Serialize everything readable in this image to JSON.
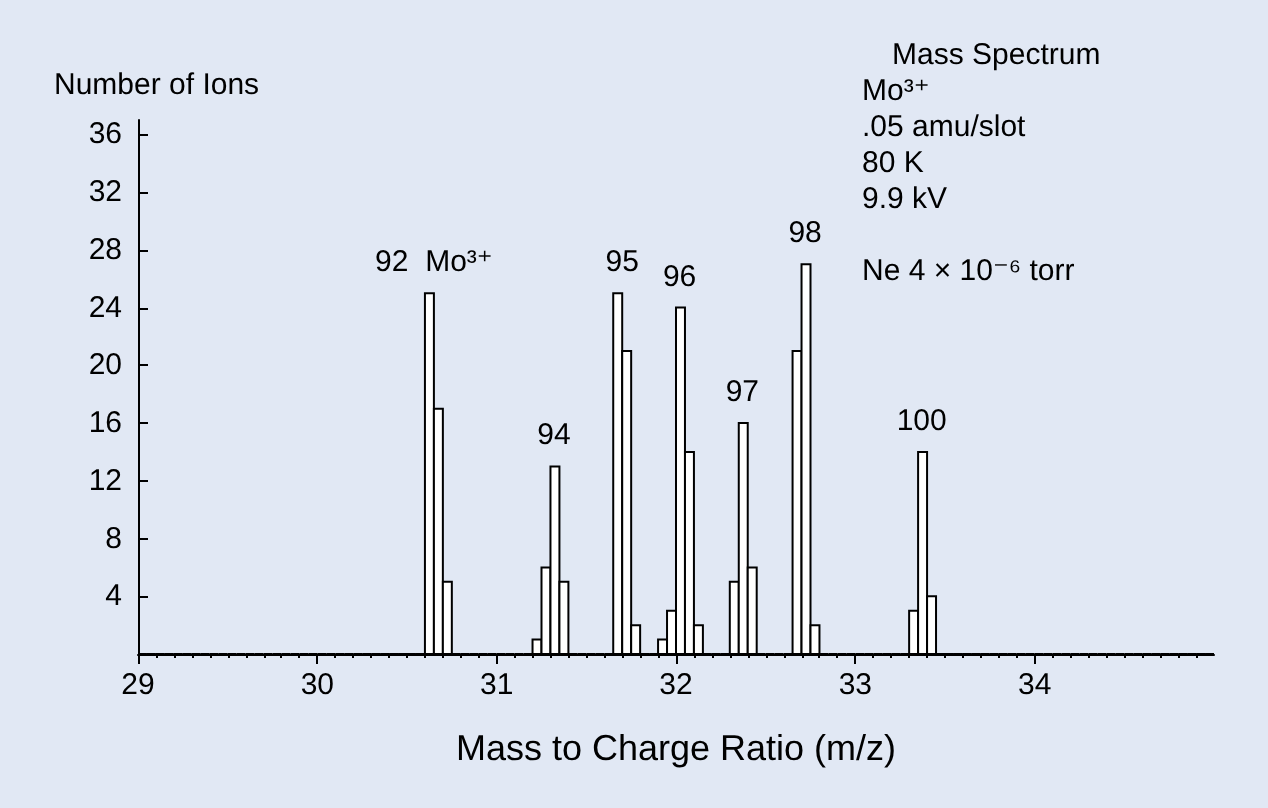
{
  "chart_data": {
    "type": "histogram",
    "xlabel": "Mass to Charge Ratio (m/z)",
    "ylabel": "Number of Ions",
    "color": "#ffffff",
    "bins": [
      29,
      29.05,
      29.1,
      29.15,
      29.2,
      29.25,
      29.3,
      29.35,
      29.4,
      29.45,
      29.5,
      29.55,
      29.6,
      29.65,
      29.7,
      29.75,
      29.8,
      29.85,
      29.9,
      29.95,
      30,
      30.05,
      30.1,
      30.15,
      30.2,
      30.25,
      30.3,
      30.35,
      30.4,
      30.45,
      30.5,
      30.55,
      30.6,
      30.65,
      30.7,
      30.75,
      30.8,
      30.85,
      30.9,
      30.95,
      31,
      31.05,
      31.1,
      31.15,
      31.2,
      31.25,
      31.3,
      31.35,
      31.4,
      31.45,
      31.5,
      31.55,
      31.6,
      31.65,
      31.7,
      31.75,
      31.8,
      31.85,
      31.9,
      31.95,
      32,
      32.05,
      32.1,
      32.15,
      32.2,
      32.25,
      32.3,
      32.35,
      32.4,
      32.45,
      32.5,
      32.55,
      32.6,
      32.65,
      32.7,
      32.75,
      32.8,
      32.85,
      32.9,
      32.95,
      33,
      33.05,
      33.1,
      33.15,
      33.2,
      33.25,
      33.3,
      33.35,
      33.4,
      33.45,
      33.5,
      33.55,
      33.6,
      33.65,
      33.7,
      33.75,
      33.8,
      33.85,
      33.9,
      33.95,
      34,
      34.05,
      34.1,
      34.15,
      34.2,
      34.25,
      34.3,
      34.35,
      34.4,
      34.45,
      34.5,
      34.55,
      34.6,
      34.65,
      34.7,
      34.75,
      34.8,
      34.85,
      34.9,
      34.95,
      35
    ],
    "values": [
      0,
      0,
      0,
      0,
      0,
      0,
      0,
      0,
      0,
      0,
      0,
      0,
      0,
      0,
      0,
      0,
      0,
      0,
      0,
      0,
      0,
      0,
      0,
      0,
      0,
      0,
      0,
      0,
      0,
      0,
      0,
      0,
      25,
      17,
      5,
      0,
      0,
      0,
      0,
      0,
      0,
      0,
      0,
      0,
      1,
      6,
      13,
      5,
      0,
      0,
      0,
      0,
      0,
      25,
      21,
      2,
      0,
      0,
      1,
      3,
      24,
      14,
      2,
      0,
      0,
      0,
      5,
      16,
      6,
      0,
      0,
      0,
      0,
      21,
      27,
      2,
      0,
      0,
      0,
      0,
      0,
      0,
      0,
      0,
      0,
      0,
      3,
      14,
      4,
      0,
      0,
      0,
      0,
      0,
      0,
      0,
      0,
      0,
      0,
      0,
      0,
      0,
      0,
      0,
      0,
      0,
      0,
      0,
      0,
      0,
      0,
      0,
      0,
      0,
      0,
      0,
      0,
      0,
      0,
      0
    ],
    "xlim": [
      29,
      35
    ],
    "xticks": [
      29,
      30,
      31,
      32,
      33,
      34
    ],
    "ylim": [
      0,
      37
    ],
    "yticks": [
      4,
      8,
      12,
      16,
      20,
      24,
      28,
      32,
      36
    ],
    "annotations": [
      {
        "text": "92  Mo³⁺",
        "x": 30.65,
        "y": 25
      },
      {
        "text": "94",
        "x": 31.32,
        "y": 13
      },
      {
        "text": "95",
        "x": 31.7,
        "y": 25
      },
      {
        "text": "96",
        "x": 32.02,
        "y": 24
      },
      {
        "text": "97",
        "x": 32.37,
        "y": 16
      },
      {
        "text": "98",
        "x": 32.72,
        "y": 27
      },
      {
        "text": "100",
        "x": 33.37,
        "y": 14
      },
      "Mass Spectrum",
      "Mo³⁺",
      ".05 amu/slot",
      "80 K",
      "9.9 kV",
      "Ne 4 × 10⁻⁶ torr"
    ]
  }
}
